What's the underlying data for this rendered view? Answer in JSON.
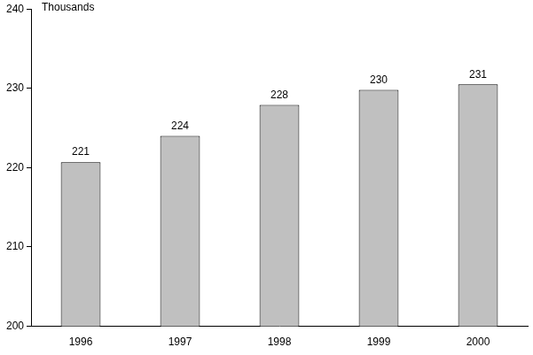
{
  "chart_data": {
    "type": "bar",
    "ylabel": "Thousands",
    "categories": [
      "1996",
      "1997",
      "1998",
      "1999",
      "2000"
    ],
    "values": [
      220.7,
      224.0,
      227.9,
      229.8,
      230.5
    ],
    "value_labels": [
      "221",
      "224",
      "228",
      "230",
      "231"
    ],
    "color": "#c0c0c0",
    "ylim": [
      200,
      240
    ],
    "yticks": [
      200,
      210,
      220,
      230,
      240
    ],
    "grid": false,
    "data_labels": true
  }
}
